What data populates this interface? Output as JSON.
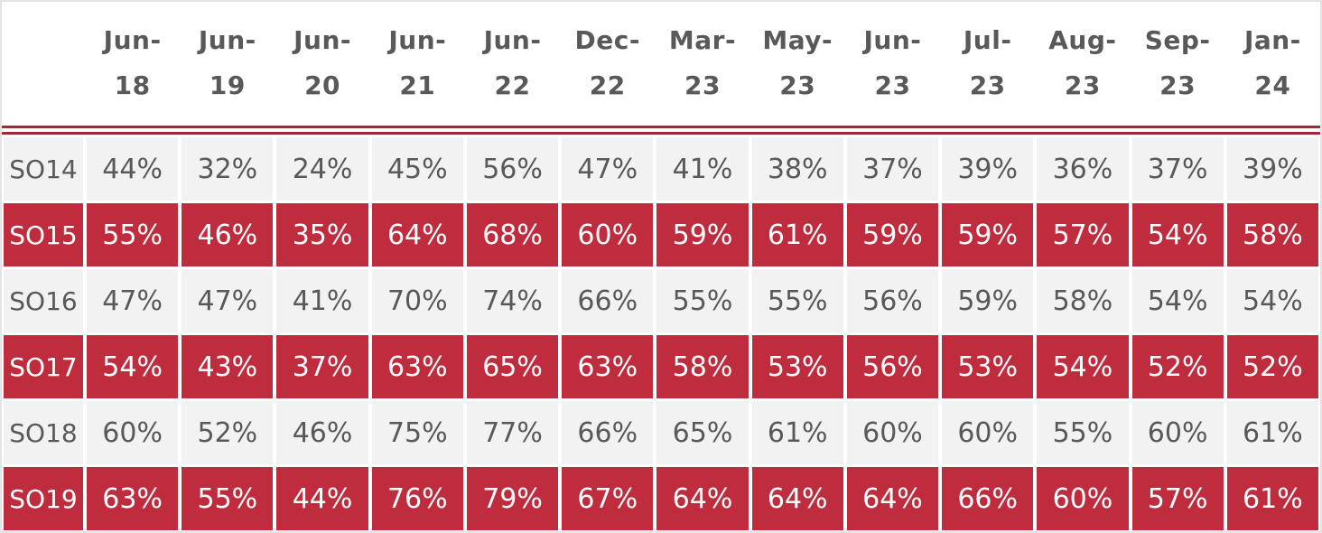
{
  "table": {
    "corner_label": "",
    "columns": [
      {
        "line1": "Jun-",
        "line2": "18"
      },
      {
        "line1": "Jun-",
        "line2": "19"
      },
      {
        "line1": "Jun-",
        "line2": "20"
      },
      {
        "line1": "Jun-",
        "line2": "21"
      },
      {
        "line1": "Jun-",
        "line2": "22"
      },
      {
        "line1": "Dec-",
        "line2": "22"
      },
      {
        "line1": "Mar-",
        "line2": "23"
      },
      {
        "line1": "May-",
        "line2": "23"
      },
      {
        "line1": "Jun-",
        "line2": "23"
      },
      {
        "line1": "Jul-",
        "line2": "23"
      },
      {
        "line1": "Aug-",
        "line2": "23"
      },
      {
        "line1": "Sep-",
        "line2": "23"
      },
      {
        "line1": "Jan-",
        "line2": "24"
      }
    ],
    "rows": [
      {
        "label": "SO14",
        "variant": "light",
        "values": [
          "44%",
          "32%",
          "24%",
          "45%",
          "56%",
          "47%",
          "41%",
          "38%",
          "37%",
          "39%",
          "36%",
          "37%",
          "39%"
        ]
      },
      {
        "label": "SO15",
        "variant": "red",
        "values": [
          "55%",
          "46%",
          "35%",
          "64%",
          "68%",
          "60%",
          "59%",
          "61%",
          "59%",
          "59%",
          "57%",
          "54%",
          "58%"
        ]
      },
      {
        "label": "SO16",
        "variant": "light",
        "values": [
          "47%",
          "47%",
          "41%",
          "70%",
          "74%",
          "66%",
          "55%",
          "55%",
          "56%",
          "59%",
          "58%",
          "54%",
          "54%"
        ]
      },
      {
        "label": "SO17",
        "variant": "red",
        "values": [
          "54%",
          "43%",
          "37%",
          "63%",
          "65%",
          "63%",
          "58%",
          "53%",
          "56%",
          "53%",
          "54%",
          "52%",
          "52%"
        ]
      },
      {
        "label": "SO18",
        "variant": "light",
        "values": [
          "60%",
          "52%",
          "46%",
          "75%",
          "77%",
          "66%",
          "65%",
          "61%",
          "60%",
          "60%",
          "55%",
          "60%",
          "61%"
        ]
      },
      {
        "label": "SO19",
        "variant": "red",
        "values": [
          "63%",
          "55%",
          "44%",
          "76%",
          "79%",
          "67%",
          "64%",
          "64%",
          "64%",
          "66%",
          "60%",
          "57%",
          "61%"
        ]
      }
    ]
  },
  "colors": {
    "cell_red": "#bf2c3e",
    "line_red": "#a32638",
    "light_row_bg": "#f2f2f2",
    "text_gray": "#58595b",
    "page_border": "#e4e4e4"
  },
  "chart_data": {
    "type": "table",
    "title": "",
    "categories": [
      "Jun-18",
      "Jun-19",
      "Jun-20",
      "Jun-21",
      "Jun-22",
      "Dec-22",
      "Mar-23",
      "May-23",
      "Jun-23",
      "Jul-23",
      "Aug-23",
      "Sep-23",
      "Jan-24"
    ],
    "unit": "%",
    "series": [
      {
        "name": "SO14",
        "values": [
          44,
          32,
          24,
          45,
          56,
          47,
          41,
          38,
          37,
          39,
          36,
          37,
          39
        ]
      },
      {
        "name": "SO15",
        "values": [
          55,
          46,
          35,
          64,
          68,
          60,
          59,
          61,
          59,
          59,
          57,
          54,
          58
        ]
      },
      {
        "name": "SO16",
        "values": [
          47,
          47,
          41,
          70,
          74,
          66,
          55,
          55,
          56,
          59,
          58,
          54,
          54
        ]
      },
      {
        "name": "SO17",
        "values": [
          54,
          43,
          37,
          63,
          65,
          63,
          58,
          53,
          56,
          53,
          54,
          52,
          52
        ]
      },
      {
        "name": "SO18",
        "values": [
          60,
          52,
          46,
          75,
          77,
          66,
          65,
          61,
          60,
          60,
          55,
          60,
          61
        ]
      },
      {
        "name": "SO19",
        "values": [
          63,
          55,
          44,
          76,
          79,
          67,
          64,
          64,
          64,
          66,
          60,
          57,
          61
        ]
      }
    ],
    "layout": {
      "row_striping": [
        "light",
        "red"
      ],
      "header_separator": "double-red-rule"
    }
  }
}
